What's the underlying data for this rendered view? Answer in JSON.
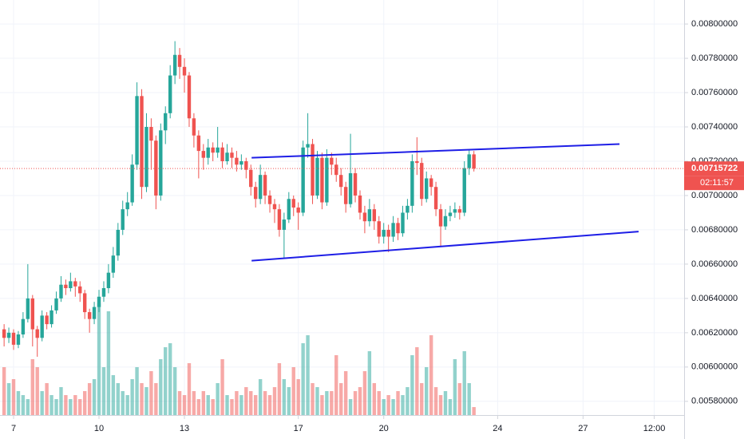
{
  "chart_data": {
    "type": "candlestick",
    "x": [
      6.667,
      6.833,
      7,
      7.167,
      7.333,
      7.5,
      7.667,
      7.833,
      8,
      8.167,
      8.333,
      8.5,
      8.667,
      8.833,
      9,
      9.167,
      9.333,
      9.5,
      9.667,
      9.833,
      10,
      10.167,
      10.333,
      10.5,
      10.667,
      10.833,
      11,
      11.167,
      11.333,
      11.5,
      11.667,
      11.833,
      12,
      12.167,
      12.333,
      12.5,
      12.667,
      12.833,
      13,
      13.167,
      13.333,
      13.5,
      13.667,
      13.833,
      14,
      14.167,
      14.333,
      14.5,
      14.667,
      14.833,
      15,
      15.167,
      15.333,
      15.5,
      15.667,
      15.833,
      16,
      16.167,
      16.333,
      16.5,
      16.667,
      16.833,
      17,
      17.167,
      17.333,
      17.5,
      17.667,
      17.833,
      18,
      18.167,
      18.333,
      18.5,
      18.667,
      18.833,
      19,
      19.167,
      19.333,
      19.5,
      19.667,
      19.833,
      20,
      20.167,
      20.333,
      20.5,
      20.667,
      20.833,
      21,
      21.167,
      21.333,
      21.5,
      21.667,
      21.833,
      22,
      22.167,
      22.333,
      22.5,
      22.667,
      22.833,
      23,
      23.167
    ],
    "open": [
      0.00622,
      0.00617,
      0.0062,
      0.00613,
      0.00619,
      0.00628,
      0.0064,
      0.00622,
      0.00617,
      0.0063,
      0.00625,
      0.00633,
      0.0064,
      0.00648,
      0.00646,
      0.0065,
      0.00647,
      0.00643,
      0.00632,
      0.00628,
      0.00635,
      0.00641,
      0.00646,
      0.00655,
      0.00665,
      0.0068,
      0.00692,
      0.00696,
      0.00718,
      0.00758,
      0.00705,
      0.0074,
      0.00732,
      0.007,
      0.00738,
      0.00748,
      0.0077,
      0.00782,
      0.00775,
      0.0077,
      0.00745,
      0.00735,
      0.00726,
      0.00722,
      0.00728,
      0.00725,
      0.00728,
      0.0072,
      0.00725,
      0.00722,
      0.00718,
      0.0072,
      0.00715,
      0.00705,
      0.00698,
      0.00712,
      0.007,
      0.00695,
      0.00692,
      0.0068,
      0.00686,
      0.00698,
      0.00693,
      0.0069,
      0.00728,
      0.0073,
      0.007,
      0.00722,
      0.00696,
      0.00722,
      0.00718,
      0.00712,
      0.00705,
      0.00695,
      0.00713,
      0.007,
      0.0069,
      0.00685,
      0.00692,
      0.00685,
      0.00676,
      0.0068,
      0.00676,
      0.00684,
      0.00678,
      0.0069,
      0.00694,
      0.0072,
      0.00719,
      0.00698,
      0.0071,
      0.00705,
      0.00692,
      0.00682,
      0.00688,
      0.0069,
      0.00692,
      0.0069,
      0.00716,
      0.00724
    ],
    "high": [
      0.00625,
      0.00623,
      0.00622,
      0.00621,
      0.00632,
      0.0066,
      0.00642,
      0.00624,
      0.00633,
      0.00632,
      0.00636,
      0.00644,
      0.00653,
      0.00651,
      0.00655,
      0.00652,
      0.0065,
      0.00645,
      0.00634,
      0.00638,
      0.00645,
      0.0065,
      0.0066,
      0.0067,
      0.00684,
      0.00697,
      0.00702,
      0.00724,
      0.00766,
      0.00762,
      0.00748,
      0.00745,
      0.00735,
      0.00742,
      0.00752,
      0.00776,
      0.0079,
      0.00786,
      0.0078,
      0.00772,
      0.00748,
      0.00738,
      0.0073,
      0.00733,
      0.00731,
      0.0074,
      0.00731,
      0.0073,
      0.00728,
      0.00726,
      0.00724,
      0.00722,
      0.00718,
      0.00708,
      0.00718,
      0.00714,
      0.00703,
      0.00698,
      0.00695,
      0.0069,
      0.00702,
      0.007,
      0.00696,
      0.00732,
      0.00748,
      0.00733,
      0.00726,
      0.00725,
      0.00727,
      0.00725,
      0.00722,
      0.00716,
      0.00708,
      0.00736,
      0.00716,
      0.00703,
      0.00694,
      0.00698,
      0.00695,
      0.00688,
      0.00684,
      0.00683,
      0.00688,
      0.00687,
      0.00694,
      0.00698,
      0.00724,
      0.00734,
      0.00722,
      0.00714,
      0.00712,
      0.00708,
      0.00695,
      0.00692,
      0.00694,
      0.00696,
      0.00694,
      0.0072,
      0.00727,
      0.00726
    ],
    "low": [
      0.00612,
      0.00614,
      0.0061,
      0.00611,
      0.00617,
      0.00626,
      0.00612,
      0.00606,
      0.00615,
      0.00622,
      0.00623,
      0.00631,
      0.00638,
      0.00642,
      0.00644,
      0.00641,
      0.00638,
      0.00628,
      0.0062,
      0.00625,
      0.00632,
      0.00638,
      0.00643,
      0.00652,
      0.00662,
      0.00677,
      0.00688,
      0.00694,
      0.00715,
      0.00698,
      0.00702,
      0.00715,
      0.00692,
      0.00697,
      0.0073,
      0.00745,
      0.00765,
      0.00768,
      0.0076,
      0.0074,
      0.00728,
      0.0071,
      0.00715,
      0.00718,
      0.0072,
      0.00722,
      0.00716,
      0.00718,
      0.00716,
      0.00714,
      0.00715,
      0.0071,
      0.007,
      0.00693,
      0.00695,
      0.00695,
      0.0069,
      0.00684,
      0.00676,
      0.00663,
      0.00684,
      0.00688,
      0.0068,
      0.00688,
      0.00722,
      0.00695,
      0.00698,
      0.00692,
      0.00694,
      0.00712,
      0.00708,
      0.007,
      0.0069,
      0.00693,
      0.00696,
      0.00686,
      0.00678,
      0.00682,
      0.0068,
      0.00672,
      0.00672,
      0.00667,
      0.00673,
      0.00674,
      0.00676,
      0.00686,
      0.0069,
      0.00712,
      0.00694,
      0.00696,
      0.007,
      0.00688,
      0.0067,
      0.0068,
      0.00685,
      0.00687,
      0.00686,
      0.00688,
      0.00712,
      0.00714
    ],
    "close": [
      0.00617,
      0.0062,
      0.00613,
      0.00619,
      0.00628,
      0.0064,
      0.00622,
      0.00617,
      0.0063,
      0.00625,
      0.00633,
      0.0064,
      0.00648,
      0.00646,
      0.0065,
      0.00647,
      0.00643,
      0.00632,
      0.00628,
      0.00635,
      0.00641,
      0.00646,
      0.00655,
      0.00665,
      0.0068,
      0.00692,
      0.00696,
      0.00718,
      0.00758,
      0.00705,
      0.0074,
      0.00732,
      0.007,
      0.00738,
      0.00748,
      0.0077,
      0.00782,
      0.00775,
      0.0077,
      0.00745,
      0.00735,
      0.00726,
      0.00722,
      0.00728,
      0.00725,
      0.00728,
      0.0072,
      0.00725,
      0.00722,
      0.00718,
      0.0072,
      0.00715,
      0.00705,
      0.00698,
      0.00712,
      0.007,
      0.00695,
      0.00692,
      0.0068,
      0.00686,
      0.00698,
      0.00693,
      0.0069,
      0.00728,
      0.0073,
      0.007,
      0.00722,
      0.00696,
      0.00722,
      0.00718,
      0.00712,
      0.00705,
      0.00695,
      0.00713,
      0.007,
      0.0069,
      0.00685,
      0.00692,
      0.00685,
      0.00676,
      0.0068,
      0.00676,
      0.00684,
      0.00678,
      0.0069,
      0.00694,
      0.0072,
      0.00719,
      0.00698,
      0.0071,
      0.00705,
      0.00692,
      0.00682,
      0.00688,
      0.0069,
      0.00692,
      0.0069,
      0.00716,
      0.00724,
      0.00715722
    ],
    "volume": [
      60,
      40,
      45,
      30,
      25,
      20,
      70,
      60,
      30,
      40,
      25,
      20,
      35,
      25,
      20,
      25,
      20,
      30,
      40,
      45,
      140,
      60,
      130,
      50,
      40,
      30,
      25,
      45,
      60,
      40,
      35,
      55,
      40,
      70,
      85,
      90,
      60,
      30,
      25,
      65,
      30,
      20,
      30,
      25,
      20,
      40,
      70,
      25,
      20,
      30,
      25,
      35,
      30,
      25,
      45,
      30,
      25,
      35,
      65,
      45,
      35,
      60,
      45,
      90,
      100,
      40,
      35,
      25,
      30,
      30,
      75,
      40,
      55,
      20,
      30,
      35,
      55,
      80,
      40,
      30,
      20,
      25,
      20,
      30,
      25,
      35,
      75,
      85,
      40,
      60,
      100,
      35,
      25,
      30,
      20,
      70,
      40,
      80,
      40,
      10
    ],
    "volume_ylim": [
      0,
      520
    ],
    "up_color": "#26a69a",
    "down_color": "#ef5350",
    "trendline_color": "#1e1ee6",
    "xlim": [
      6.523,
      30.55
    ],
    "xticks": [
      7,
      10,
      13,
      17,
      20,
      24,
      27,
      {
        "value": 29.5,
        "label": "12:00"
      }
    ],
    "ylim": [
      0.00572,
      0.00814
    ],
    "yticks": [
      {
        "value": 0.0058,
        "label": "0.00580000"
      },
      {
        "value": 0.006,
        "label": "0.00600000"
      },
      {
        "value": 0.0062,
        "label": "0.00620000"
      },
      {
        "value": 0.0064,
        "label": "0.00640000"
      },
      {
        "value": 0.0066,
        "label": "0.00660000"
      },
      {
        "value": 0.0068,
        "label": "0.00680000"
      },
      {
        "value": 0.007,
        "label": "0.00700000"
      },
      {
        "value": 0.0072,
        "label": "0.00720000"
      },
      {
        "value": 0.0074,
        "label": "0.00740000"
      },
      {
        "value": 0.0076,
        "label": "0.00760000"
      },
      {
        "value": 0.0078,
        "label": "0.00780000"
      },
      {
        "value": 0.008,
        "label": "0.00800000"
      }
    ],
    "grid": true,
    "trendlines": [
      {
        "x": [
          15.36,
          28.28
        ],
        "y": [
          0.00722,
          0.0073
        ]
      },
      {
        "x": [
          15.36,
          28.95
        ],
        "y": [
          0.00662,
          0.00679
        ]
      }
    ],
    "countdown": "02:11:57"
  }
}
